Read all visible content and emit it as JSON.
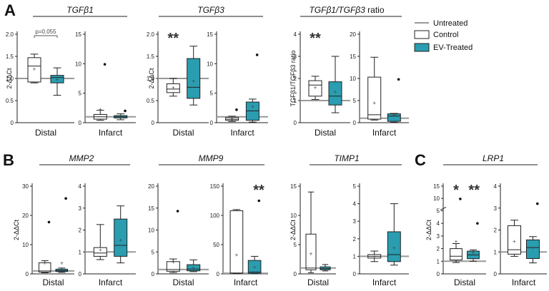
{
  "panel_labels": [
    "A",
    "B",
    "C"
  ],
  "legend": {
    "items": [
      {
        "label": "Untreated",
        "kind": "line",
        "color": "#999999"
      },
      {
        "label": "Control",
        "kind": "box",
        "color": "#ffffff"
      },
      {
        "label": "EV-Treated",
        "kind": "box",
        "color": "#2a9db0"
      }
    ]
  },
  "colors": {
    "control": "#ffffff",
    "treated": "#2a9db0",
    "baseline": "#999999",
    "axis": "#222222"
  },
  "pvalue_note": "p=0.055",
  "chart_data": [
    {
      "id": "tgfb1",
      "panel": "A",
      "gene": "TGFβ1",
      "type": "box",
      "plots": [
        {
          "category": "Distal",
          "ylabel": "2-ΔΔCt",
          "ylim": [
            0,
            2
          ],
          "ticks": [
            0,
            0.5,
            1.0,
            1.5,
            2.0
          ],
          "tick_labels": [
            "0",
            "0.5",
            "1.0",
            "1.5",
            "2.0"
          ],
          "stars": "",
          "annotation": "p=0.055",
          "boxes": [
            {
              "group": "Control",
              "whisker_low": 0.9,
              "q1": 0.92,
              "median": 1.28,
              "q3": 1.47,
              "whisker_high": 1.55,
              "mean": 1.22,
              "outliers": []
            },
            {
              "group": "EV-Treated",
              "whisker_low": 0.62,
              "q1": 0.9,
              "median": 1.02,
              "q3": 1.07,
              "whisker_high": 1.24,
              "mean": 0.98,
              "outliers": []
            }
          ]
        },
        {
          "category": "Infarct",
          "ylabel": "",
          "ylim": [
            0,
            15
          ],
          "ticks": [
            0,
            5,
            10,
            15
          ],
          "tick_labels": [
            "0",
            "5",
            "10",
            "15"
          ],
          "stars": "",
          "boxes": [
            {
              "group": "Control",
              "whisker_low": 0.4,
              "q1": 0.6,
              "median": 1.0,
              "q3": 1.4,
              "whisker_high": 2.1,
              "mean": 2.3,
              "outliers": [
                9.9
              ]
            },
            {
              "group": "EV-Treated",
              "whisker_low": 0.5,
              "q1": 0.8,
              "median": 1.0,
              "q3": 1.2,
              "whisker_high": 1.5,
              "mean": 1.1,
              "outliers": [
                2.0
              ]
            }
          ]
        }
      ]
    },
    {
      "id": "tgfb3",
      "panel": "A",
      "gene": "TGFβ3",
      "type": "box",
      "plots": [
        {
          "category": "Distal",
          "ylabel": "2-ΔΔCt",
          "ylim": [
            0,
            2
          ],
          "ticks": [
            0,
            0.5,
            1.0,
            1.5,
            2.0
          ],
          "tick_labels": [
            "0",
            "0.5",
            "1.0",
            "1.5",
            "2.0"
          ],
          "stars": "**",
          "boxes": [
            {
              "group": "Control",
              "whisker_low": 0.6,
              "q1": 0.68,
              "median": 0.76,
              "q3": 0.88,
              "whisker_high": 1.0,
              "mean": 0.8,
              "outliers": []
            },
            {
              "group": "EV-Treated",
              "whisker_low": 0.4,
              "q1": 0.55,
              "median": 0.8,
              "q3": 1.45,
              "whisker_high": 1.73,
              "mean": 0.94,
              "outliers": []
            }
          ]
        },
        {
          "category": "Infarct",
          "ylabel": "",
          "ylim": [
            0,
            15
          ],
          "ticks": [
            0,
            5,
            10,
            15
          ],
          "tick_labels": [
            "0",
            "5",
            "10",
            "15"
          ],
          "stars": "",
          "boxes": [
            {
              "group": "Control",
              "whisker_low": 0.2,
              "q1": 0.4,
              "median": 0.6,
              "q3": 0.9,
              "whisker_high": 1.1,
              "mean": 0.7,
              "outliers": [
                2.2
              ]
            },
            {
              "group": "EV-Treated",
              "whisker_low": 0.1,
              "q1": 0.4,
              "median": 2.0,
              "q3": 3.5,
              "whisker_high": 4.0,
              "mean": 2.8,
              "outliers": [
                11.5
              ]
            }
          ]
        }
      ]
    },
    {
      "id": "ratio",
      "panel": "A",
      "gene": "TGFβ1/TGFβ3",
      "title_suffix": "ratio",
      "type": "box",
      "plots": [
        {
          "category": "Distal",
          "ylabel": "TGFβ1/TGFβ3 ratio",
          "ylim": [
            0,
            4
          ],
          "ticks": [
            0,
            1,
            2,
            3,
            4
          ],
          "tick_labels": [
            "0",
            "1",
            "2",
            "3",
            "4"
          ],
          "stars": "**",
          "boxes": [
            {
              "group": "Control",
              "whisker_low": 1.05,
              "q1": 1.2,
              "median": 1.7,
              "q3": 1.9,
              "whisker_high": 2.1,
              "mean": 1.6,
              "outliers": []
            },
            {
              "group": "EV-Treated",
              "whisker_low": 0.45,
              "q1": 0.8,
              "median": 1.2,
              "q3": 1.85,
              "whisker_high": 3.0,
              "mean": 1.4,
              "outliers": []
            }
          ]
        },
        {
          "category": "Infarct",
          "ylabel": "",
          "ylim": [
            0,
            20
          ],
          "ticks": [
            0,
            5,
            10,
            15,
            20
          ],
          "tick_labels": [
            "0",
            "5",
            "10",
            "15",
            "20"
          ],
          "stars": "",
          "boxes": [
            {
              "group": "Control",
              "whisker_low": 0.6,
              "q1": 0.8,
              "median": 1.8,
              "q3": 10.3,
              "whisker_high": 14.8,
              "mean": 4.5,
              "outliers": []
            },
            {
              "group": "EV-Treated",
              "whisker_low": 0.1,
              "q1": 0.3,
              "median": 1.5,
              "q3": 2.0,
              "whisker_high": 2.1,
              "mean": 1.8,
              "outliers": [
                9.8
              ]
            }
          ]
        }
      ]
    },
    {
      "id": "mmp2",
      "panel": "B",
      "gene": "MMP2",
      "type": "box",
      "plots": [
        {
          "category": "Distal",
          "ylabel": "2-ΔΔCt",
          "ylim": [
            0,
            30
          ],
          "ticks": [
            0,
            10,
            20,
            30
          ],
          "tick_labels": [
            "0",
            "10",
            "20",
            "30"
          ],
          "stars": "",
          "boxes": [
            {
              "group": "Control",
              "whisker_low": 0.4,
              "q1": 0.6,
              "median": 1.0,
              "q3": 3.8,
              "whisker_high": 4.5,
              "mean": 3.8,
              "outliers": [
                17.7
              ]
            },
            {
              "group": "EV-Treated",
              "whisker_low": 0.5,
              "q1": 0.8,
              "median": 1.1,
              "q3": 1.6,
              "whisker_high": 2.0,
              "mean": 3.8,
              "outliers": [
                25.8
              ]
            }
          ]
        },
        {
          "category": "Infarct",
          "ylabel": "",
          "ylim": [
            0,
            4
          ],
          "ticks": [
            0,
            1,
            2,
            3,
            4
          ],
          "tick_labels": [
            "0",
            "1",
            "2",
            "3",
            "4"
          ],
          "stars": "",
          "boxes": [
            {
              "group": "Control",
              "whisker_low": 0.65,
              "q1": 0.8,
              "median": 0.95,
              "q3": 1.2,
              "whisker_high": 2.25,
              "mean": 1.1,
              "outliers": []
            },
            {
              "group": "EV-Treated",
              "whisker_low": 0.5,
              "q1": 0.8,
              "median": 1.3,
              "q3": 2.5,
              "whisker_high": 3.1,
              "mean": 1.55,
              "outliers": []
            }
          ]
        }
      ]
    },
    {
      "id": "mmp9",
      "panel": "B",
      "gene": "MMP9",
      "type": "box",
      "plots": [
        {
          "category": "Distal",
          "ylabel": "",
          "ylim": [
            0,
            20
          ],
          "ticks": [
            0,
            5,
            10,
            15,
            20
          ],
          "tick_labels": [
            "0",
            "5",
            "10",
            "15",
            "20"
          ],
          "stars": "",
          "boxes": [
            {
              "group": "Control",
              "whisker_low": 0.3,
              "q1": 0.6,
              "median": 1.0,
              "q3": 2.8,
              "whisker_high": 3.4,
              "mean": 2.8,
              "outliers": [
                14.3
              ]
            },
            {
              "group": "EV-Treated",
              "whisker_low": 0.5,
              "q1": 0.7,
              "median": 1.1,
              "q3": 2.1,
              "whisker_high": 3.2,
              "mean": 1.5,
              "outliers": []
            }
          ]
        },
        {
          "category": "Infarct",
          "ylabel": "",
          "ylim": [
            0,
            150
          ],
          "ticks": [
            0,
            50,
            100,
            150
          ],
          "tick_labels": [
            "0",
            "50",
            "100",
            "150"
          ],
          "stars": "**",
          "boxes": [
            {
              "group": "Control",
              "whisker_low": 0.5,
              "q1": 1.0,
              "median": 1.5,
              "q3": 108.0,
              "whisker_high": 110.0,
              "mean": 33.0,
              "outliers": []
            },
            {
              "group": "EV-Treated",
              "whisker_low": 0.5,
              "q1": 1.0,
              "median": 3.0,
              "q3": 23.0,
              "whisker_high": 30.0,
              "mean": 12.0,
              "outliers": [
                125.0
              ]
            }
          ]
        }
      ]
    },
    {
      "id": "timp1",
      "panel": "B",
      "gene": "TIMP1",
      "type": "box",
      "plots": [
        {
          "category": "Distal",
          "ylabel": "2-ΔΔCt",
          "ylim": [
            0,
            15
          ],
          "ticks": [
            0,
            5,
            10,
            15
          ],
          "tick_labels": [
            "0",
            "5",
            "10",
            "15"
          ],
          "stars": "",
          "boxes": [
            {
              "group": "Control",
              "whisker_low": 0.2,
              "q1": 0.7,
              "median": 1.0,
              "q3": 6.8,
              "whisker_high": 14.0,
              "mean": 3.5,
              "outliers": []
            },
            {
              "group": "EV-Treated",
              "whisker_low": 0.5,
              "q1": 0.7,
              "median": 0.9,
              "q3": 1.2,
              "whisker_high": 1.6,
              "mean": 1.0,
              "outliers": []
            }
          ]
        },
        {
          "category": "Infarct",
          "ylabel": "",
          "ylim": [
            0,
            5
          ],
          "ticks": [
            0,
            1,
            2,
            3,
            4,
            5
          ],
          "tick_labels": [
            "0",
            "1",
            "2",
            "3",
            "4",
            "5"
          ],
          "stars": "",
          "boxes": [
            {
              "group": "Control",
              "whisker_low": 0.7,
              "q1": 0.9,
              "median": 1.0,
              "q3": 1.1,
              "whisker_high": 1.3,
              "mean": 1.0,
              "outliers": []
            },
            {
              "group": "EV-Treated",
              "whisker_low": 0.5,
              "q1": 0.7,
              "median": 1.1,
              "q3": 2.4,
              "whisker_high": 4.0,
              "mean": 1.5,
              "outliers": []
            }
          ]
        }
      ]
    },
    {
      "id": "lrp1",
      "panel": "C",
      "gene": "LRP1",
      "type": "box",
      "plots": [
        {
          "category": "Distal",
          "ylabel": "2-ΔΔCt",
          "ylim": [
            0,
            15
          ],
          "ticks": [
            0,
            1,
            2,
            3,
            4,
            5,
            10,
            15
          ],
          "tick_labels": [
            "0",
            "1",
            "2",
            "3",
            "4",
            "5",
            "10",
            "15"
          ],
          "break_at": 5,
          "stars": "*",
          "stars2": "**",
          "boxes": [
            {
              "group": "Control",
              "whisker_low": 0.9,
              "q1": 1.1,
              "median": 1.4,
              "q3": 2.0,
              "whisker_high": 2.4,
              "mean": 2.6,
              "outliers": [
                9.8
              ]
            },
            {
              "group": "EV-Treated",
              "whisker_low": 1.0,
              "q1": 1.2,
              "median": 1.5,
              "q3": 1.8,
              "whisker_high": 1.9,
              "mean": 1.7,
              "outliers": [
                4.0
              ]
            }
          ]
        },
        {
          "category": "Infarct",
          "ylabel": "",
          "ylim": [
            0,
            4
          ],
          "ticks": [
            0,
            1,
            2,
            3,
            4
          ],
          "tick_labels": [
            "0",
            "1",
            "2",
            "3",
            "4"
          ],
          "stars": "",
          "boxes": [
            {
              "group": "Control",
              "whisker_low": 0.8,
              "q1": 0.9,
              "median": 1.1,
              "q3": 2.2,
              "whisker_high": 2.45,
              "mean": 1.5,
              "outliers": []
            },
            {
              "group": "EV-Treated",
              "whisker_low": 0.5,
              "q1": 0.7,
              "median": 1.2,
              "q3": 1.55,
              "whisker_high": 1.7,
              "mean": 1.2,
              "outliers": [
                3.2
              ]
            }
          ]
        }
      ]
    }
  ]
}
